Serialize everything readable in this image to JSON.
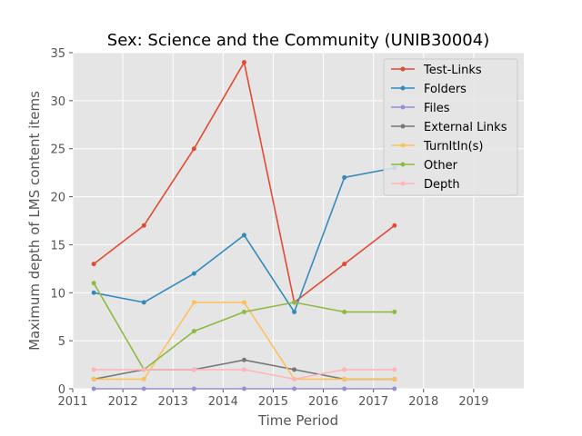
{
  "chart_data": {
    "type": "line",
    "title": "Sex: Science and the Community (UNIB30004)",
    "xlabel": "Time Period",
    "ylabel": "Maximum depth of LMS content items",
    "xlim": [
      2011,
      2020
    ],
    "ylim": [
      0,
      35
    ],
    "xticks": [
      "2011",
      "2012",
      "2013",
      "2014",
      "2015",
      "2016",
      "2017",
      "2018",
      "2019"
    ],
    "yticks": [
      "0",
      "5",
      "10",
      "15",
      "20",
      "25",
      "30",
      "35"
    ],
    "grid": true,
    "legend_position": "top-right",
    "x": [
      2011.42,
      2012.42,
      2013.42,
      2014.42,
      2015.42,
      2016.42,
      2017.42
    ],
    "series": [
      {
        "name": "Test-Links",
        "color": "#E24A33",
        "values": [
          13,
          17,
          25,
          34,
          9,
          13,
          17
        ]
      },
      {
        "name": "Folders",
        "color": "#348ABD",
        "values": [
          10,
          9,
          12,
          16,
          8,
          22,
          23
        ]
      },
      {
        "name": "Files",
        "color": "#988ED5",
        "values": [
          0,
          0,
          0,
          0,
          0,
          0,
          0
        ]
      },
      {
        "name": "External Links",
        "color": "#777777",
        "values": [
          1,
          2,
          2,
          3,
          2,
          1,
          1
        ]
      },
      {
        "name": "TurnItIn(s)",
        "color": "#FBC15E",
        "values": [
          1,
          1,
          9,
          9,
          1,
          1,
          1
        ]
      },
      {
        "name": "Other",
        "color": "#8EBA42",
        "values": [
          11,
          2,
          6,
          8,
          9,
          8,
          8
        ]
      },
      {
        "name": "Depth",
        "color": "#FFB5B8",
        "values": [
          2,
          2,
          2,
          2,
          1,
          2,
          2
        ]
      }
    ]
  }
}
